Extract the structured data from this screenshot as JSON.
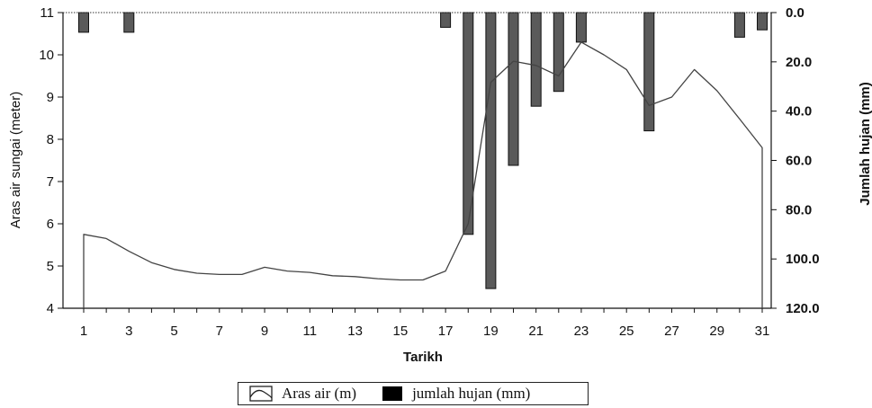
{
  "chart_data": {
    "type": "bar-line-combo",
    "xlabel": "Tarikh",
    "ylabel_left": "Aras  air sungai (meter)",
    "ylabel_right": "Jumlah hujan (mm)",
    "xlim": [
      1,
      31
    ],
    "ylim_left": [
      4,
      11
    ],
    "ylim_right_inverted": [
      0,
      120
    ],
    "x_ticks": [
      "1",
      "3",
      "5",
      "7",
      "9",
      "11",
      "13",
      "15",
      "17",
      "19",
      "21",
      "23",
      "25",
      "27",
      "29",
      "31"
    ],
    "y_left_ticks": [
      "4",
      "5",
      "6",
      "7",
      "8",
      "9",
      "10",
      "11"
    ],
    "y_right_ticks": [
      "0.0",
      "20.0",
      "40.0",
      "60.0",
      "80.0",
      "100.0",
      "120.0"
    ],
    "grid": false,
    "legend_position": "bottom-center",
    "series": [
      {
        "name": "Aras air (m)",
        "type": "line",
        "color": "#444444",
        "x": [
          1,
          2,
          3,
          4,
          5,
          6,
          7,
          8,
          9,
          10,
          11,
          12,
          13,
          14,
          15,
          16,
          17,
          18,
          19,
          20,
          21,
          22,
          23,
          24,
          25,
          26,
          27,
          28,
          29,
          30,
          31
        ],
        "values": [
          5.75,
          5.65,
          5.35,
          5.08,
          4.92,
          4.83,
          4.8,
          4.8,
          4.97,
          4.88,
          4.85,
          4.77,
          4.75,
          4.7,
          4.67,
          4.67,
          4.88,
          6.0,
          9.35,
          9.85,
          9.75,
          9.5,
          10.3,
          10.0,
          9.65,
          8.8,
          9.0,
          9.65,
          9.15,
          8.48,
          7.8
        ]
      },
      {
        "name": "jumlah hujan (mm)",
        "type": "bar",
        "color": "#5a5a5a",
        "x": [
          1,
          3,
          17,
          18,
          19,
          20,
          21,
          22,
          23,
          26,
          30,
          31
        ],
        "values": [
          8,
          8,
          6,
          90,
          112,
          62,
          38,
          32,
          12,
          48,
          10,
          7
        ]
      }
    ]
  }
}
